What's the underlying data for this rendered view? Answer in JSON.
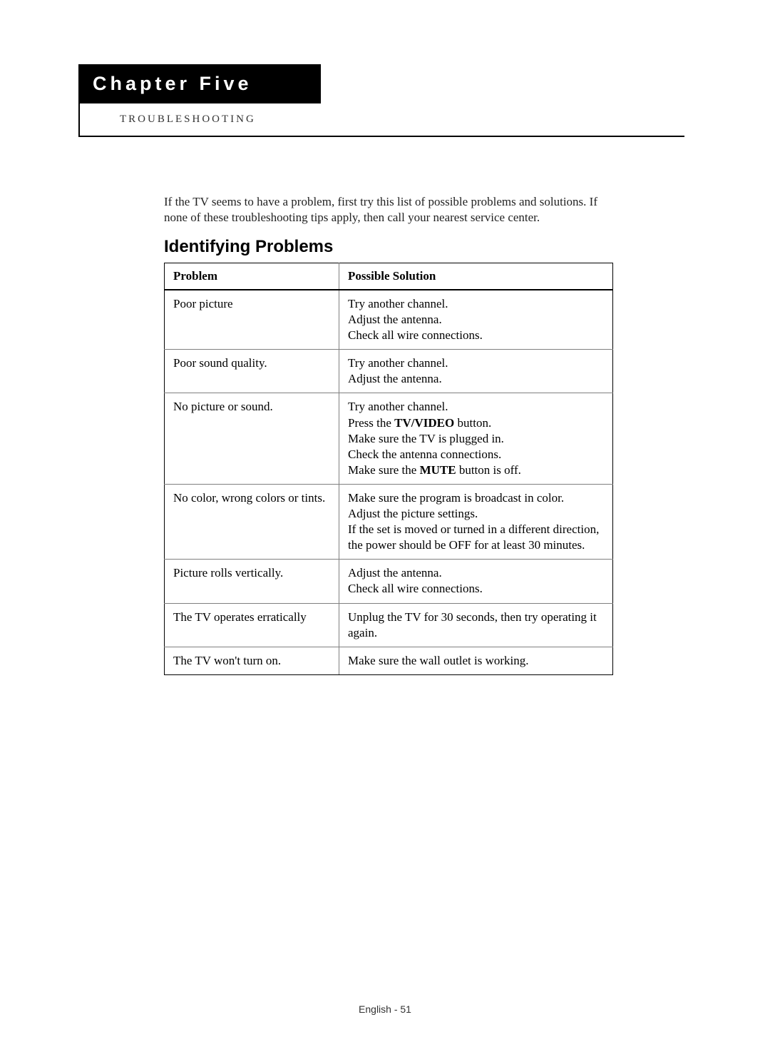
{
  "chapter": {
    "title": "Chapter Five",
    "subtitle": "TROUBLESHOOTING"
  },
  "intro": "If the TV seems to have a problem, first try this list of possible problems and solutions. If none of these troubleshooting tips apply, then call your nearest service center.",
  "section_title": "Identifying Problems",
  "table": {
    "headers": {
      "problem": "Problem",
      "solution": "Possible Solution"
    },
    "rows": [
      {
        "problem": "Poor picture",
        "solution_lines": [
          "Try another channel.",
          "Adjust the antenna.",
          "Check all wire connections."
        ]
      },
      {
        "problem": "Poor sound quality.",
        "solution_lines": [
          "Try another channel.",
          "Adjust the antenna."
        ]
      },
      {
        "problem": "No picture or sound.",
        "solution_lines": [
          "Try another channel.",
          "Press the <b>TV/VIDEO</b> button.",
          "Make sure the TV is plugged in.",
          "Check the antenna connections.",
          "Make sure the <b>MUTE</b> button is off."
        ]
      },
      {
        "problem": "No color, wrong colors or tints.",
        "solution_lines": [
          "Make sure the program is broadcast in color.",
          "Adjust the picture settings.",
          "If the set is moved or turned in a different direction, the power should be OFF for at least 30 minutes."
        ]
      },
      {
        "problem": "Picture rolls vertically.",
        "solution_lines": [
          "Adjust the antenna.",
          "Check all wire connections."
        ]
      },
      {
        "problem": "The TV operates erratically",
        "solution_lines": [
          "Unplug the TV for 30 seconds, then try operating it again."
        ]
      },
      {
        "problem": "The TV won't turn on.",
        "solution_lines": [
          "Make sure the wall outlet is working."
        ]
      }
    ]
  },
  "footer": "English - 51"
}
